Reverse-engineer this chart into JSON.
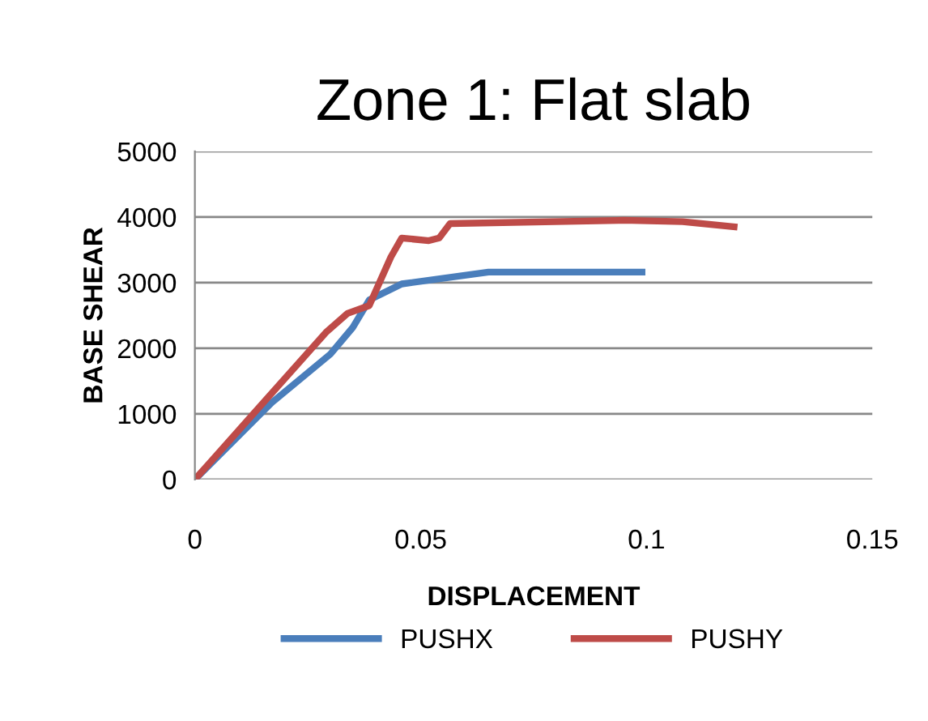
{
  "chart_data": {
    "type": "line",
    "title": "Zone 1: Flat slab",
    "xlabel": "DISPLACEMENT",
    "ylabel": "BASE SHEAR",
    "xlim": [
      0,
      0.15
    ],
    "xticks": [
      0,
      0.05,
      0.1,
      0.15
    ],
    "ylim": [
      0,
      5000
    ],
    "yticks": [
      0,
      1000,
      2000,
      3000,
      4000,
      5000
    ],
    "grid": "y",
    "legend": "bottom",
    "marker": "none",
    "line_style": "solid",
    "series": [
      {
        "name": "PUSHX",
        "color": "#4a7ebb",
        "x": [
          0,
          0.017,
          0.03,
          0.035,
          0.0386,
          0.0458,
          0.065,
          0.099
        ],
        "values": [
          0,
          1170,
          1910,
          2320,
          2735,
          2980,
          3160,
          3160
        ]
      },
      {
        "name": "PUSHY",
        "color": "#be4b48",
        "x": [
          0,
          0.029,
          0.0338,
          0.0386,
          0.0434,
          0.0458,
          0.0518,
          0.0541,
          0.0565,
          0.0949,
          0.108,
          0.1194
        ],
        "values": [
          0,
          2240,
          2530,
          2650,
          3390,
          3680,
          3640,
          3680,
          3900,
          3950,
          3930,
          3850
        ]
      }
    ]
  }
}
